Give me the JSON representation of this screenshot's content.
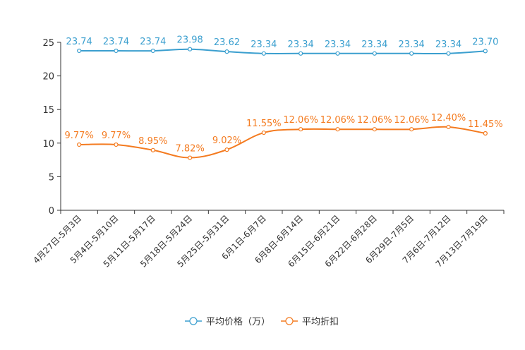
{
  "chart_data": {
    "type": "line",
    "categories": [
      "4月27日-5月3日",
      "5月4日-5月10日",
      "5月11日-5月17日",
      "5月18日-5月24日",
      "5月25日-5月31日",
      "6月1日-6月7日",
      "6月8日-6月14日",
      "6月15日-6月21日",
      "6月22日-6月28日",
      "6月29日-7月5日",
      "7月6日-7月12日",
      "7月13日-7月19日"
    ],
    "ylim": [
      0,
      25
    ],
    "yticks": [
      0,
      5,
      10,
      15,
      20,
      25
    ],
    "grid": false,
    "legend_position": "bottom-center",
    "series": [
      {
        "name": "平均价格（万）",
        "color": "#3b9fcf",
        "values": [
          23.74,
          23.74,
          23.74,
          23.98,
          23.62,
          23.34,
          23.34,
          23.34,
          23.34,
          23.34,
          23.34,
          23.7
        ],
        "labels": [
          "23.74",
          "23.74",
          "23.74",
          "23.98",
          "23.62",
          "23.34",
          "23.34",
          "23.34",
          "23.34",
          "23.34",
          "23.34",
          "23.70"
        ]
      },
      {
        "name": "平均折扣",
        "color": "#f47b20",
        "values": [
          9.77,
          9.77,
          8.95,
          7.82,
          9.02,
          11.55,
          12.06,
          12.06,
          12.06,
          12.06,
          12.4,
          11.45
        ],
        "labels": [
          "9.77%",
          "9.77%",
          "8.95%",
          "7.82%",
          "9.02%",
          "11.55%",
          "12.06%",
          "12.06%",
          "12.06%",
          "12.06%",
          "12.40%",
          "11.45%"
        ]
      }
    ]
  }
}
